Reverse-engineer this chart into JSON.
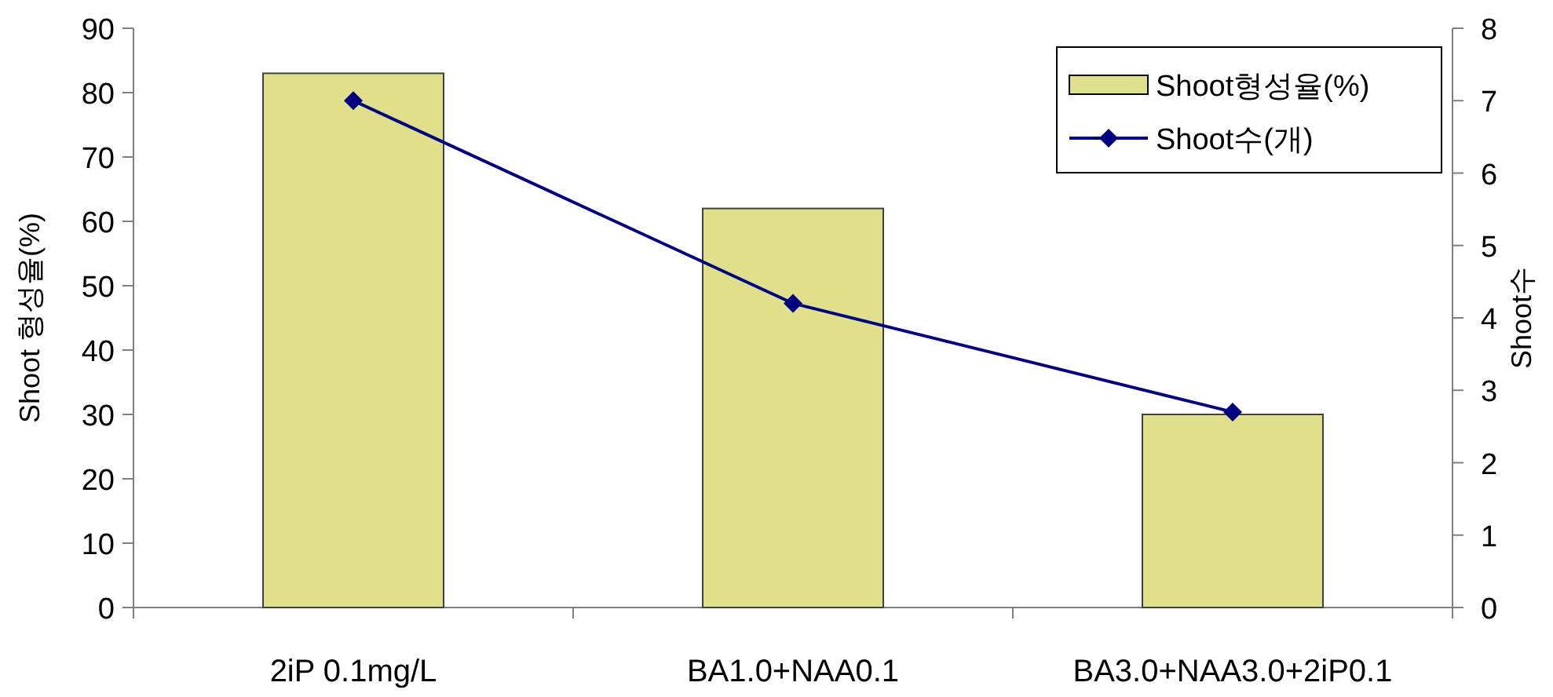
{
  "chart_data": {
    "type": "bar",
    "categories": [
      "2iP 0.1mg/L",
      "BA1.0+NAA0.1",
      "BA3.0+NAA3.0+2iP0.1"
    ],
    "series": [
      {
        "name": "Shoot형성율(%)",
        "color": "#e0e08c",
        "values": [
          83,
          62,
          30
        ]
      },
      {
        "name": "Shoot수(개)",
        "type": "line",
        "axis": "y2",
        "color": "#000080",
        "marker": "diamond",
        "line_style": "solid",
        "values": [
          7.0,
          4.2,
          2.7
        ]
      }
    ],
    "ylabel": "Shoot 형성율(%)",
    "y2label": "Shoot수",
    "ylim": [
      0,
      90
    ],
    "yticks": [
      0,
      10,
      20,
      30,
      40,
      50,
      60,
      70,
      80,
      90
    ],
    "y2lim": [
      0,
      8
    ],
    "y2ticks": [
      0,
      1,
      2,
      3,
      4,
      5,
      6,
      7,
      8
    ],
    "legend": "top right"
  }
}
